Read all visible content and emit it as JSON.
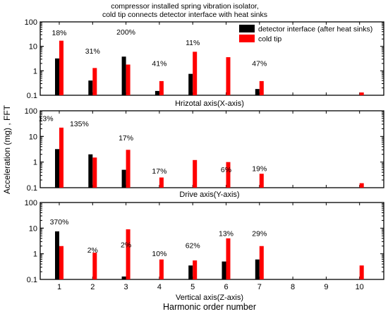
{
  "chart_data": {
    "type": "bar",
    "title": "compressor installed spring vibration isolator,\ncold tip connects detector interface with heat sinks",
    "ylabel": "Acceleration (mg) , FFT",
    "xlabel": "Harmonic order number",
    "y_scale": "log",
    "ylim": [
      0.1,
      100
    ],
    "yticks": [
      "0.1",
      "1",
      "10",
      "100"
    ],
    "categories": [
      "1",
      "2",
      "3",
      "4",
      "5",
      "6",
      "7",
      "8",
      "9",
      "10"
    ],
    "legend": {
      "position": "top-right",
      "entries": [
        "detector interface (after heat sinks)",
        "cold tip"
      ]
    },
    "colors": {
      "detector interface (after heat sinks)": "#000000",
      "cold tip": "#ff0000"
    },
    "panels": [
      {
        "label": "Hrizotal axis(X-axis)",
        "series": [
          {
            "name": "detector interface (after heat sinks)",
            "values": [
              3.2,
              0.4,
              3.8,
              0.15,
              0.75,
              null,
              0.18,
              null,
              null,
              null
            ]
          },
          {
            "name": "cold tip",
            "values": [
              17,
              1.3,
              1.8,
              0.38,
              6.0,
              3.6,
              0.38,
              null,
              null,
              0.13
            ]
          }
        ],
        "annotations": [
          {
            "text": "18%",
            "x": 1,
            "y": 28
          },
          {
            "text": "200%",
            "x": 3,
            "y": 30
          },
          {
            "text": "31%",
            "x": 2,
            "y": 5
          },
          {
            "text": "11%",
            "x": 5,
            "y": 11
          },
          {
            "text": "41%",
            "x": 4,
            "y": 1.6
          },
          {
            "text": "47%",
            "x": 7,
            "y": 1.6
          }
        ]
      },
      {
        "label": "Drive axis(Y-axis)",
        "series": [
          {
            "name": "detector interface (after heat sinks)",
            "values": [
              3.2,
              2.0,
              0.5,
              null,
              null,
              null,
              null,
              null,
              null,
              null
            ]
          },
          {
            "name": "cold tip",
            "values": [
              22,
              1.5,
              3.0,
              0.25,
              1.2,
              1.0,
              0.35,
              null,
              null,
              0.15
            ]
          }
        ],
        "annotations": [
          {
            "text": "13%",
            "x": 0.6,
            "y": 40
          },
          {
            "text": "135%",
            "x": 1.6,
            "y": 25
          },
          {
            "text": "17%",
            "x": 3,
            "y": 7
          },
          {
            "text": "17%",
            "x": 4,
            "y": 0.35
          },
          {
            "text": "6%",
            "x": 6,
            "y": 0.4
          },
          {
            "text": "19%",
            "x": 7,
            "y": 0.45
          }
        ]
      },
      {
        "label": "Vertical axis(Z-axis)",
        "series": [
          {
            "name": "detector interface (after heat sinks)",
            "values": [
              7.5,
              null,
              0.13,
              null,
              0.35,
              0.5,
              0.6,
              null,
              null,
              null
            ]
          },
          {
            "name": "cold tip",
            "values": [
              2.0,
              1.1,
              9.0,
              0.6,
              0.55,
              4.0,
              2.0,
              null,
              null,
              0.35
            ]
          }
        ],
        "annotations": [
          {
            "text": "370%",
            "x": 1,
            "y": 14
          },
          {
            "text": "2%",
            "x": 2,
            "y": 1.1
          },
          {
            "text": "2%",
            "x": 3,
            "y": 1.8
          },
          {
            "text": "10%",
            "x": 4,
            "y": 0.8
          },
          {
            "text": "62%",
            "x": 5,
            "y": 1.7
          },
          {
            "text": "13%",
            "x": 6,
            "y": 5
          },
          {
            "text": "29%",
            "x": 7,
            "y": 5
          }
        ]
      }
    ]
  }
}
